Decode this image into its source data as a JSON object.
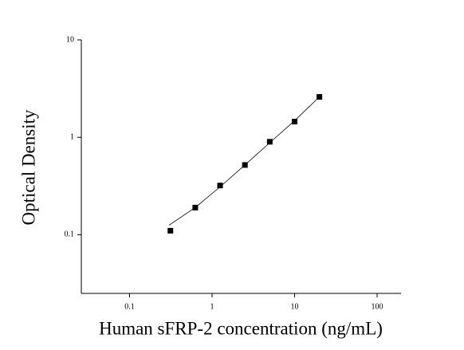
{
  "chart_data": {
    "type": "scatter",
    "x_label": "Human sFRP-2 concentration (ng/mL)",
    "y_label": "Optical Density",
    "x": [
      0.3125,
      0.625,
      1.25,
      2.5,
      5,
      10,
      20
    ],
    "values": [
      0.11,
      0.19,
      0.32,
      0.52,
      0.9,
      1.45,
      2.6
    ],
    "color": "#000000",
    "fit": {
      "x": [
        0.3,
        0.625,
        1.25,
        2.5,
        5,
        10,
        20
      ],
      "values": [
        0.125,
        0.19,
        0.31,
        0.52,
        0.88,
        1.48,
        2.6
      ]
    },
    "xscale": "log",
    "yscale": "log",
    "xlim": [
      0.026,
      195
    ],
    "ylim": [
      0.025,
      10
    ],
    "xticks": [
      0.1,
      1,
      10,
      100
    ],
    "yticks": [
      0.1,
      1,
      10
    ]
  }
}
